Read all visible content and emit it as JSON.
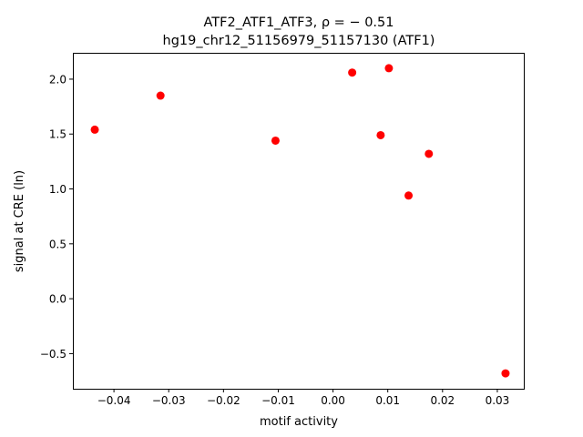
{
  "chart_data": {
    "type": "scatter",
    "title_line1": "ATF2_ATF1_ATF3, ρ = − 0.51",
    "title_line2": "hg19_chr12_51156979_51157130 (ATF1)",
    "xlabel": "motif activity",
    "ylabel": "signal at CRE (ln)",
    "xlim": [
      -0.0475,
      0.035
    ],
    "ylim": [
      -0.82,
      2.24
    ],
    "xticks": [
      -0.04,
      -0.03,
      -0.02,
      -0.01,
      0.0,
      0.01,
      0.02,
      0.03
    ],
    "xtick_labels": [
      "−0.04",
      "−0.03",
      "−0.02",
      "−0.01",
      "0.00",
      "0.01",
      "0.02",
      "0.03"
    ],
    "yticks": [
      -0.5,
      0.0,
      0.5,
      1.0,
      1.5,
      2.0
    ],
    "ytick_labels": [
      "−0.5",
      "0.0",
      "0.5",
      "1.0",
      "1.5",
      "2.0"
    ],
    "marker_color": "#ff0000",
    "points": [
      {
        "x": -0.0435,
        "y": 1.54
      },
      {
        "x": -0.0315,
        "y": 1.85
      },
      {
        "x": -0.0105,
        "y": 1.44
      },
      {
        "x": 0.0035,
        "y": 2.06
      },
      {
        "x": 0.0087,
        "y": 1.49
      },
      {
        "x": 0.0102,
        "y": 2.1
      },
      {
        "x": 0.0138,
        "y": 0.94
      },
      {
        "x": 0.0175,
        "y": 1.32
      },
      {
        "x": 0.0315,
        "y": -0.68
      }
    ]
  }
}
